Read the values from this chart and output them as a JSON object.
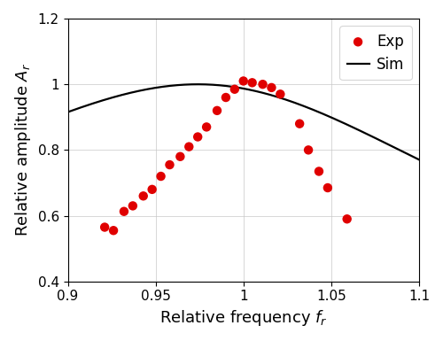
{
  "title": "",
  "xlabel": "Relative frequency $f_r$",
  "ylabel": "Relative amplitude $A_r$",
  "xlim": [
    0.9,
    1.1
  ],
  "ylim": [
    0.4,
    1.2
  ],
  "xticks": [
    0.9,
    0.95,
    1.0,
    1.05,
    1.1
  ],
  "yticks": [
    0.4,
    0.6,
    0.8,
    1.0,
    1.2
  ],
  "grid": true,
  "sim_color": "#000000",
  "sim_linewidth": 1.6,
  "exp_color": "#e00000",
  "exp_marker": "o",
  "exp_markersize": 7.5,
  "exp_data_x": [
    0.921,
    0.926,
    0.932,
    0.937,
    0.943,
    0.948,
    0.953,
    0.958,
    0.964,
    0.969,
    0.974,
    0.979,
    0.985,
    0.99,
    0.995,
    1.0,
    1.005,
    1.011,
    1.016,
    1.021,
    1.032,
    1.037,
    1.043,
    1.048,
    1.059
  ],
  "exp_data_y": [
    0.565,
    0.555,
    0.613,
    0.63,
    0.66,
    0.68,
    0.72,
    0.755,
    0.78,
    0.81,
    0.84,
    0.87,
    0.92,
    0.96,
    0.985,
    1.01,
    1.005,
    1.0,
    0.99,
    0.97,
    0.88,
    0.8,
    0.735,
    0.685,
    0.59
  ],
  "zeta": 0.16,
  "legend_exp": "Exp",
  "legend_sim": "Sim",
  "legend_fontsize": 12,
  "axis_fontsize": 13,
  "tick_fontsize": 11,
  "background_color": "#ffffff"
}
